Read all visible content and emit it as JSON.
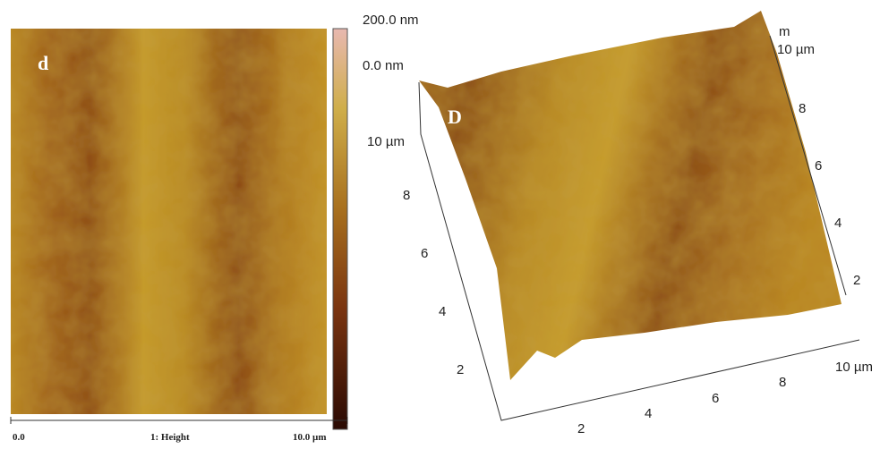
{
  "panel_2d": {
    "label": "d",
    "colorbar": {
      "max": "200.0 nm",
      "min": "0.0 nm"
    },
    "scale": {
      "start": "0.0",
      "channel": "1: Height",
      "end": "10.0 µm"
    }
  },
  "panel_3d": {
    "label": "D",
    "z_label": "m",
    "left_axis": [
      "10 µm",
      "8",
      "6",
      "4",
      "2"
    ],
    "right_axis": [
      "10 µm",
      "8",
      "6",
      "4",
      "2"
    ],
    "bottom_axis": [
      "2",
      "4",
      "6",
      "8",
      "10 µm"
    ]
  }
}
